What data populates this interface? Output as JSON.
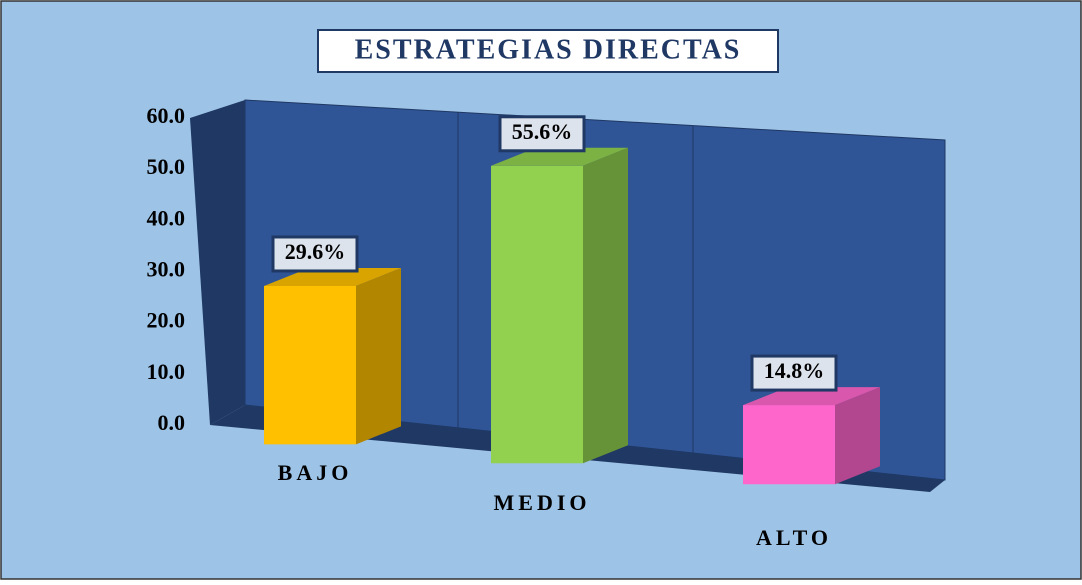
{
  "chart_data": {
    "type": "bar",
    "title": "ESTRATEGIAS DIRECTAS",
    "categories": [
      "BAJO",
      "MEDIO",
      "ALTO"
    ],
    "values": [
      29.6,
      55.6,
      14.8
    ],
    "value_labels": [
      "29.6%",
      "55.6%",
      "14.8%"
    ],
    "colors": [
      "#ffc000",
      "#92d050",
      "#ff66cc"
    ],
    "ylim": [
      0,
      60
    ],
    "yticks": [
      {
        "value": 0,
        "label": "0.0"
      },
      {
        "value": 10,
        "label": "10.0"
      },
      {
        "value": 20,
        "label": "20.0"
      },
      {
        "value": 30,
        "label": "30.0"
      },
      {
        "value": 40,
        "label": "40.0"
      },
      {
        "value": 50,
        "label": "50.0"
      },
      {
        "value": 60,
        "label": "60.0"
      }
    ]
  }
}
